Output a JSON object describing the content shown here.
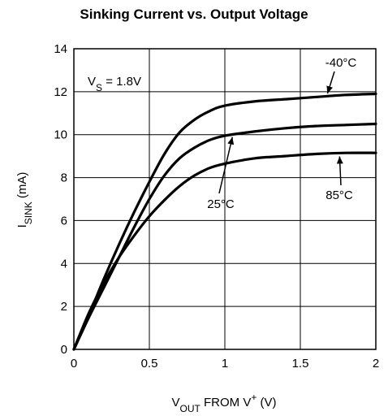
{
  "chart_data": {
    "type": "line",
    "title": "Sinking Current vs. Output Voltage",
    "xlabel": {
      "main": "V",
      "sub": "OUT",
      "rest": " FROM V",
      "sup": "+",
      "unit": " (V)"
    },
    "ylabel": {
      "main": "I",
      "sub": "SINK",
      "unit": " (mA)"
    },
    "xlim": [
      0,
      2
    ],
    "ylim": [
      0,
      14
    ],
    "x_ticks": [
      "0",
      "0.5",
      "1",
      "1.5",
      "2"
    ],
    "y_ticks": [
      "0",
      "2",
      "4",
      "6",
      "8",
      "10",
      "12",
      "14"
    ],
    "grid": true,
    "supply": {
      "label": "V",
      "sub": "S",
      "value": " = 1.8V"
    },
    "series": [
      {
        "name": "-40°C",
        "x": [
          0,
          0.1,
          0.2,
          0.3,
          0.4,
          0.5,
          0.6,
          0.7,
          0.8,
          0.9,
          1.0,
          1.2,
          1.4,
          1.6,
          1.8,
          2.0
        ],
        "y": [
          0,
          1.6,
          3.3,
          4.9,
          6.4,
          7.8,
          9.1,
          10.1,
          10.7,
          11.1,
          11.35,
          11.55,
          11.65,
          11.75,
          11.85,
          11.9
        ]
      },
      {
        "name": "25°C",
        "x": [
          0,
          0.1,
          0.2,
          0.3,
          0.4,
          0.5,
          0.6,
          0.7,
          0.8,
          0.9,
          1.0,
          1.2,
          1.4,
          1.6,
          1.8,
          2.0
        ],
        "y": [
          0,
          1.5,
          2.9,
          4.3,
          5.7,
          7.0,
          8.1,
          8.9,
          9.4,
          9.75,
          9.95,
          10.15,
          10.3,
          10.4,
          10.45,
          10.5
        ]
      },
      {
        "name": "85°C",
        "x": [
          0,
          0.1,
          0.2,
          0.3,
          0.4,
          0.5,
          0.6,
          0.7,
          0.8,
          0.9,
          1.0,
          1.2,
          1.4,
          1.6,
          1.8,
          2.0
        ],
        "y": [
          0,
          1.7,
          3.1,
          4.3,
          5.3,
          6.2,
          6.95,
          7.6,
          8.1,
          8.45,
          8.65,
          8.9,
          9.0,
          9.1,
          9.15,
          9.15
        ]
      }
    ],
    "annotations": [
      {
        "text": "-40°C",
        "series": 0,
        "x": 1.68,
        "y": 11.8
      },
      {
        "text": "25°C",
        "series": 1,
        "x": 1.05,
        "y": 10.0
      },
      {
        "text": "85°C",
        "series": 2,
        "x": 1.76,
        "y": 9.1
      }
    ]
  }
}
